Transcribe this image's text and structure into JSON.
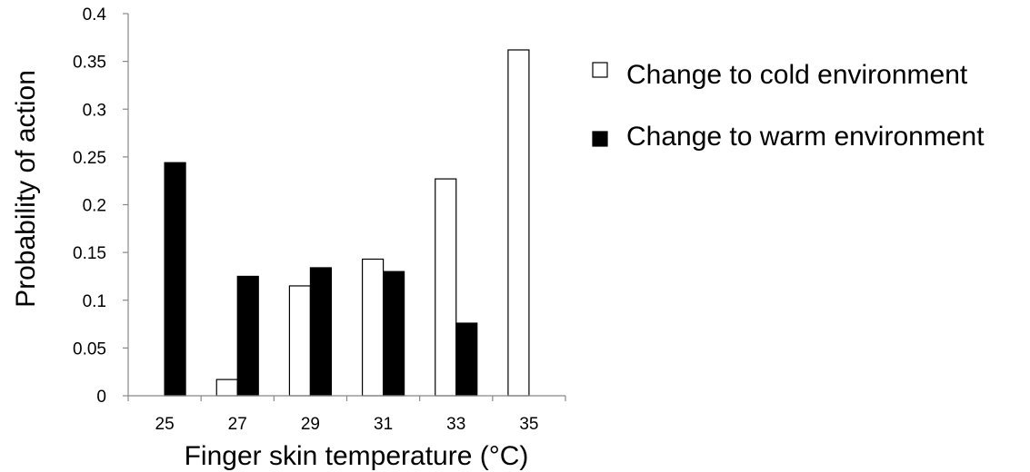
{
  "chart_data": {
    "type": "bar",
    "title": "",
    "xlabel": "Finger skin temperature (°C)",
    "ylabel": "Probability of action",
    "categories": [
      "25",
      "27",
      "29",
      "31",
      "33",
      "35"
    ],
    "ylim": [
      0,
      0.4
    ],
    "yticks": [
      "0",
      "0.05",
      "0.1",
      "0.15",
      "0.2",
      "0.25",
      "0.3",
      "0.35",
      "0.4"
    ],
    "grid": false,
    "legend_position": "right",
    "series": [
      {
        "name": "Change to cold environment",
        "values": [
          0,
          0.017,
          0.115,
          0.143,
          0.227,
          0.362
        ],
        "fill": "#ffffff",
        "stroke": "#000000"
      },
      {
        "name": "Change to warm environment",
        "values": [
          0.244,
          0.125,
          0.134,
          0.13,
          0.076,
          0
        ],
        "fill": "#000000",
        "stroke": "#000000"
      }
    ]
  }
}
